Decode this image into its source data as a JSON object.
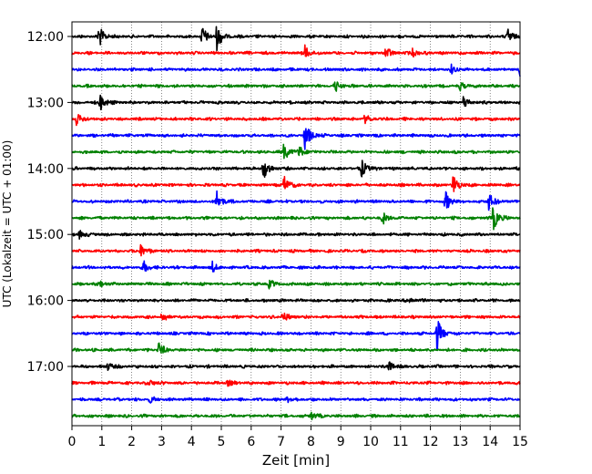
{
  "chart_data": {
    "type": "line",
    "title": "",
    "xlabel": "Zeit  [min]",
    "ylabel": "UTC (Lokalzeit = UTC + 01:00)",
    "xlim": [
      0,
      15
    ],
    "x_ticks": [
      0,
      1,
      2,
      3,
      4,
      5,
      6,
      7,
      8,
      9,
      10,
      11,
      12,
      13,
      14,
      15
    ],
    "y_ticks": [
      "12:00",
      "13:00",
      "14:00",
      "15:00",
      "16:00",
      "17:00"
    ],
    "y_tick_rows": [
      0,
      4,
      8,
      12,
      16,
      20
    ],
    "grid": "vertical-dotted",
    "row_colors": [
      "#000000",
      "#ff0000",
      "#0000ff",
      "#008000"
    ],
    "rows": [
      {
        "time": "12:00",
        "events": [
          {
            "x": 0.9,
            "amp": 1.1
          },
          {
            "x": 4.35,
            "amp": 1.0
          },
          {
            "x": 4.85,
            "amp": 1.3
          },
          {
            "x": 14.6,
            "amp": 0.8
          }
        ]
      },
      {
        "time": "12:15",
        "events": [
          {
            "x": 7.8,
            "amp": 0.7
          },
          {
            "x": 10.5,
            "amp": 0.6
          },
          {
            "x": 11.4,
            "amp": 0.4
          }
        ]
      },
      {
        "time": "12:30",
        "events": [
          {
            "x": 12.7,
            "amp": 0.4
          },
          {
            "x": 15.0,
            "amp": 0.6
          }
        ]
      },
      {
        "time": "12:45",
        "events": [
          {
            "x": 8.8,
            "amp": 0.6
          },
          {
            "x": 13.0,
            "amp": 0.4
          }
        ]
      },
      {
        "time": "13:00",
        "events": [
          {
            "x": 0.95,
            "amp": 0.9
          },
          {
            "x": 13.1,
            "amp": 0.6
          }
        ]
      },
      {
        "time": "13:15",
        "events": [
          {
            "x": 0.15,
            "amp": 0.6
          },
          {
            "x": 9.8,
            "amp": 0.4
          }
        ]
      },
      {
        "time": "13:30",
        "events": [
          {
            "x": 7.8,
            "amp": 1.5
          }
        ]
      },
      {
        "time": "13:45",
        "events": [
          {
            "x": 7.1,
            "amp": 0.9
          },
          {
            "x": 7.6,
            "amp": 0.6
          }
        ]
      },
      {
        "time": "14:00",
        "events": [
          {
            "x": 6.4,
            "amp": 1.2
          },
          {
            "x": 9.7,
            "amp": 0.9
          }
        ]
      },
      {
        "time": "14:15",
        "events": [
          {
            "x": 7.1,
            "amp": 0.9
          },
          {
            "x": 12.75,
            "amp": 1.1
          }
        ]
      },
      {
        "time": "14:30",
        "events": [
          {
            "x": 4.85,
            "amp": 1.0
          },
          {
            "x": 12.5,
            "amp": 1.0
          },
          {
            "x": 13.95,
            "amp": 0.9
          }
        ]
      },
      {
        "time": "14:45",
        "events": [
          {
            "x": 10.4,
            "amp": 0.6
          },
          {
            "x": 14.1,
            "amp": 1.3
          }
        ]
      },
      {
        "time": "15:00",
        "events": [
          {
            "x": 0.25,
            "amp": 0.4
          }
        ]
      },
      {
        "time": "15:15",
        "events": [
          {
            "x": 2.3,
            "amp": 0.6
          }
        ]
      },
      {
        "time": "15:30",
        "events": [
          {
            "x": 2.4,
            "amp": 0.6
          },
          {
            "x": 4.7,
            "amp": 0.5
          }
        ]
      },
      {
        "time": "15:45",
        "events": [
          {
            "x": 0.9,
            "amp": 0.4
          },
          {
            "x": 6.6,
            "amp": 0.4
          }
        ]
      },
      {
        "time": "16:00",
        "events": [
          {
            "x": 11.3,
            "amp": 0.3
          }
        ]
      },
      {
        "time": "16:15",
        "events": [
          {
            "x": 3.0,
            "amp": 0.4
          },
          {
            "x": 7.05,
            "amp": 0.5
          }
        ]
      },
      {
        "time": "16:30",
        "events": [
          {
            "x": 12.2,
            "amp": 1.8
          }
        ]
      },
      {
        "time": "16:45",
        "events": [
          {
            "x": 2.9,
            "amp": 0.7
          }
        ]
      },
      {
        "time": "17:00",
        "events": [
          {
            "x": 1.2,
            "amp": 0.4
          },
          {
            "x": 10.6,
            "amp": 0.5
          }
        ]
      },
      {
        "time": "17:15",
        "events": [
          {
            "x": 2.6,
            "amp": 0.3
          },
          {
            "x": 5.2,
            "amp": 0.3
          }
        ]
      },
      {
        "time": "17:30",
        "events": [
          {
            "x": 2.6,
            "amp": 0.3
          },
          {
            "x": 7.2,
            "amp": 0.3
          }
        ]
      },
      {
        "time": "17:45",
        "events": [
          {
            "x": 8.0,
            "amp": 0.4
          }
        ]
      }
    ]
  }
}
